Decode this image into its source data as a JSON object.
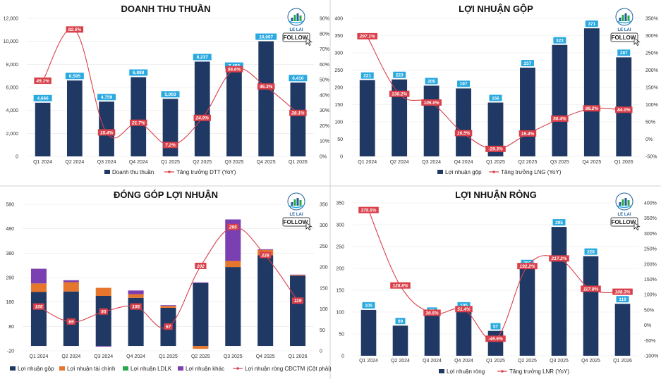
{
  "colors": {
    "bar": "#1f3864",
    "bar_label_bg": "#29a9e0",
    "line": "#d9404a",
    "gop": "#1f3864",
    "taichinh": "#e6762c",
    "ldlk": "#2aa84a",
    "khac": "#7a3fb0"
  },
  "logo": {
    "name": "LE LAI",
    "follow": "FOLLOW"
  },
  "chart_data": [
    {
      "type": "bar",
      "title": "DOANH THU THUẦN",
      "categories": [
        "Q1 2024",
        "Q2 2024",
        "Q3 2024",
        "Q4 2024",
        "Q1 2025",
        "Q2 2025",
        "Q3 2025",
        "Q4 2025",
        "Q1 2026"
      ],
      "series": [
        {
          "name": "Doanh thu thuần",
          "values": [
            4666,
            6595,
            4759,
            6888,
            5003,
            8237,
            7493,
            10007,
            6410
          ],
          "labels": [
            "4,666",
            "6,595",
            "4,759",
            "6,888",
            "5,003",
            "8,237",
            "7,493",
            "10,007",
            "6,410"
          ]
        },
        {
          "name": "Tăng trưởng DTT (YoY)",
          "type": "line",
          "axis": "right",
          "values": [
            49.1,
            82.5,
            15.4,
            21.7,
            7.2,
            24.9,
            56.6,
            45.3,
            28.1
          ],
          "labels": [
            "49.1%",
            "82.5%",
            "15.4%",
            "21.7%",
            "7.2%",
            "24.9%",
            "56.6%",
            "45.3%",
            "28.1%"
          ]
        }
      ],
      "ylim": [
        0,
        12000
      ],
      "yticks": [
        "0",
        "2,000",
        "4,000",
        "6,000",
        "8,000",
        "10,000",
        "12,000"
      ],
      "y2lim": [
        0,
        90
      ],
      "y2ticks": [
        "0%",
        "10%",
        "20%",
        "30%",
        "40%",
        "50%",
        "60%",
        "70%",
        "80%",
        "90%"
      ],
      "legend": "bottom"
    },
    {
      "type": "bar",
      "title": "LỢI NHUẬN GỘP",
      "categories": [
        "Q1 2024",
        "Q2 2024",
        "Q3 2024",
        "Q4 2024",
        "Q1 2025",
        "Q2 2025",
        "Q3 2025",
        "Q4 2025",
        "Q1 2026"
      ],
      "series": [
        {
          "name": "Lợi nhuận gộp",
          "values": [
            221,
            223,
            205,
            197,
            156,
            257,
            323,
            371,
            287
          ],
          "labels": [
            "221",
            "223",
            "205",
            "197",
            "156",
            "257",
            "323",
            "371",
            "287"
          ]
        },
        {
          "name": "Tăng trưởng LNG (YoY)",
          "type": "line",
          "axis": "right",
          "values": [
            297.1,
            130.2,
            105.0,
            16.5,
            -29.3,
            15.4,
            58.4,
            88.2,
            84.0
          ],
          "labels": [
            "297.1%",
            "130.2%",
            "105.0%",
            "16.5%",
            "-29.3%",
            "15.4%",
            "58.4%",
            "88.2%",
            "84.0%"
          ]
        }
      ],
      "ylim": [
        0,
        400
      ],
      "yticks": [
        "0",
        "50",
        "100",
        "150",
        "200",
        "250",
        "300",
        "350",
        "400"
      ],
      "y2lim": [
        -50,
        350
      ],
      "y2ticks": [
        "-50%",
        "0%",
        "50%",
        "100%",
        "150%",
        "200%",
        "250%",
        "300%",
        "350%"
      ],
      "legend": "bottom"
    },
    {
      "type": "bar",
      "stacked": true,
      "title": "ĐÓNG GÓP LỢI NHUẬN",
      "categories": [
        "Q1 2024",
        "Q2 2024",
        "Q3 2024",
        "Q4 2024",
        "Q1 2025",
        "Q2 2025",
        "Q3 2025",
        "Q4 2025",
        "Q1 2026"
      ],
      "series": [
        {
          "name": "Lợi nhuận gộp",
          "values": [
            221,
            223,
            205,
            197,
            156,
            257,
            323,
            371,
            287
          ]
        },
        {
          "name": "Lợi nhuận tài chính",
          "values": [
            35,
            38,
            33,
            15,
            8,
            -12,
            25,
            22,
            3
          ]
        },
        {
          "name": "Lợi nhuận LDLK",
          "values": [
            0,
            0,
            0,
            0,
            0,
            0,
            0,
            0,
            0
          ]
        },
        {
          "name": "Lợi nhuận khác",
          "values": [
            60,
            8,
            -3,
            15,
            3,
            3,
            170,
            3,
            2
          ]
        },
        {
          "name": "Lợi nhuận ròng CĐCTM (Cột phải)",
          "type": "line",
          "axis": "right",
          "values": [
            105,
            69,
            93,
            105,
            57,
            202,
            295,
            228,
            119
          ],
          "labels": [
            "105",
            "69",
            "93",
            "105",
            "57",
            "202",
            "295",
            "228",
            "119"
          ]
        }
      ],
      "ylim": [
        -20,
        580
      ],
      "yticks": [
        "-20",
        "80",
        "180",
        "280",
        "380",
        "480",
        "580"
      ],
      "y2lim": [
        0,
        350
      ],
      "y2ticks": [
        "0",
        "50",
        "100",
        "150",
        "200",
        "250",
        "300",
        "350"
      ],
      "legend": "bottom"
    },
    {
      "type": "bar",
      "title": "LỢI NHUẬN RÒNG",
      "categories": [
        "Q1 2024",
        "Q2 2024",
        "Q3 2024",
        "Q4 2024",
        "Q1 2025",
        "Q2 2025",
        "Q3 2025",
        "Q4 2025",
        "Q1 2026"
      ],
      "series": [
        {
          "name": "Lợi nhuận ròng",
          "values": [
            105,
            69,
            93,
            105,
            57,
            202,
            295,
            228,
            119
          ],
          "labels": [
            "105",
            "69",
            "93",
            "105",
            "57",
            "202",
            "295",
            "228",
            "119"
          ]
        },
        {
          "name": "Tăng trưởng LNR (YoY)",
          "type": "line",
          "axis": "right",
          "values": [
            375.5,
            128.8,
            39.5,
            51.4,
            -45.5,
            192.2,
            217.2,
            117.8,
            108.3
          ],
          "labels": [
            "375.5%",
            "128.8%",
            "39.5%",
            "51.4%",
            "-45.5%",
            "192.2%",
            "217.2%",
            "117.8%",
            "108.3%"
          ]
        }
      ],
      "ylim": [
        0,
        350
      ],
      "yticks": [
        "0",
        "50",
        "100",
        "150",
        "200",
        "250",
        "300",
        "350"
      ],
      "y2lim": [
        -100,
        400
      ],
      "y2ticks": [
        "-100%",
        "-50%",
        "0%",
        "50%",
        "100%",
        "150%",
        "200%",
        "250%",
        "300%",
        "350%",
        "400%"
      ],
      "legend": "bottom"
    }
  ]
}
